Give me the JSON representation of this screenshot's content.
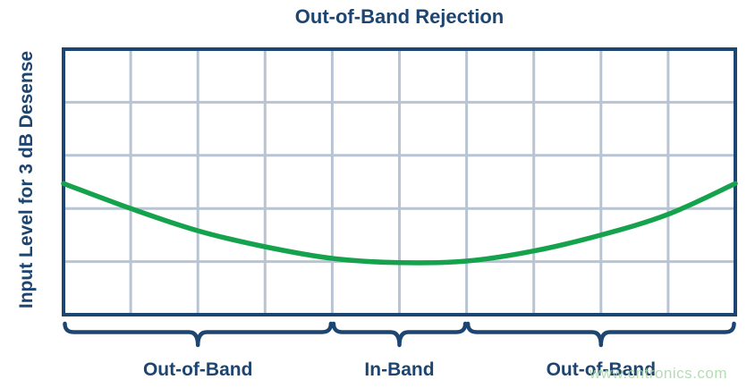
{
  "chart_data": {
    "type": "line",
    "title": "Out-of-Band Rejection",
    "xlabel": "",
    "ylabel": "Input Level for 3 dB Desense",
    "grid": true,
    "legend": false,
    "x_axis": {
      "range": [
        0,
        10
      ],
      "gridlines": 10,
      "tick_labels": []
    },
    "y_axis": {
      "range": [
        0,
        5
      ],
      "gridlines": 5,
      "tick_labels": []
    },
    "series": [
      {
        "name": "input-level-for-3db-desense",
        "color": "#14a24c",
        "x": [
          0,
          1,
          2,
          3,
          4,
          5,
          6,
          7,
          8,
          9,
          10
        ],
        "y": [
          2.47,
          2.0,
          1.58,
          1.28,
          1.06,
          0.98,
          1.01,
          1.2,
          1.5,
          1.89,
          2.47
        ]
      }
    ],
    "x_regions": [
      {
        "label": "Out-of-Band",
        "from": 0,
        "to": 4
      },
      {
        "label": "In-Band",
        "from": 4,
        "to": 6
      },
      {
        "label": "Out-of-Band",
        "from": 6,
        "to": 10
      }
    ]
  },
  "colors": {
    "navy": "#1d4571",
    "grid_line": "#b9c4d3",
    "curve_green": "#14a24c",
    "watermark_green": "#a8d6a8",
    "background": "#ffffff"
  },
  "watermark": {
    "text": "www.cntronics.com"
  }
}
